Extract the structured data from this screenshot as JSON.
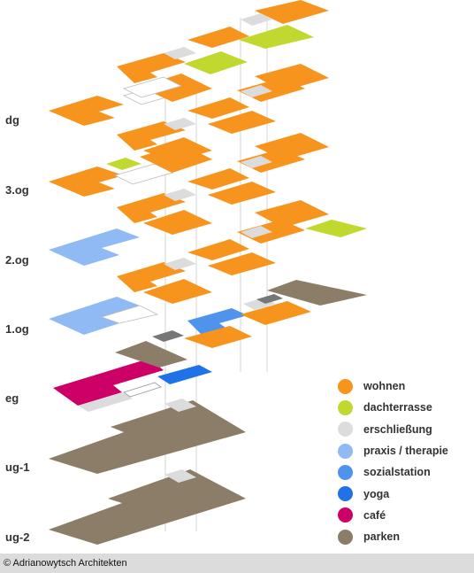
{
  "floors": [
    "dg",
    "3.og",
    "2.og",
    "1.og",
    "eg",
    "ug-1",
    "ug-2"
  ],
  "legend": [
    {
      "label": "wohnen",
      "color": "#f7941d",
      "icon": "orange-circle-icon"
    },
    {
      "label": "dachterrasse",
      "color": "#c1d82f",
      "icon": "lime-circle-icon"
    },
    {
      "label": "erschließung",
      "color": "#dcdcdc",
      "icon": "gray-circle-icon"
    },
    {
      "label": "praxis / therapie",
      "color": "#8fbaf3",
      "icon": "lightblue-circle-icon"
    },
    {
      "label": "sozialstation",
      "color": "#4f94ec",
      "icon": "blue-circle-icon"
    },
    {
      "label": "yoga",
      "color": "#1f72e8",
      "icon": "darkblue-circle-icon"
    },
    {
      "label": "café",
      "color": "#cc0066",
      "icon": "magenta-circle-icon"
    },
    {
      "label": "parken",
      "color": "#8b7d68",
      "icon": "brown-circle-icon"
    }
  ],
  "copyright": "© Adrianowytsch Architekten"
}
